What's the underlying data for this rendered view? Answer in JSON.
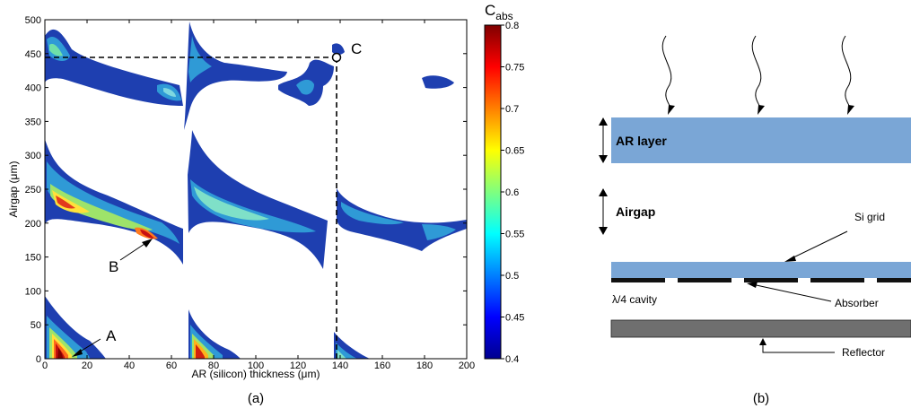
{
  "chart_data": {
    "type": "heatmap",
    "title": "",
    "xlabel": "AR (silicon) thickness (μm)",
    "ylabel": "Airgap (μm)",
    "xlim": [
      0,
      200
    ],
    "ylim": [
      0,
      500
    ],
    "xticks": [
      0,
      20,
      40,
      60,
      80,
      100,
      120,
      140,
      160,
      180,
      200
    ],
    "yticks": [
      0,
      50,
      100,
      150,
      200,
      250,
      300,
      350,
      400,
      450,
      500
    ],
    "colorbar": {
      "label": "C",
      "label_sub": "abs",
      "range": [
        0.4,
        0.8
      ],
      "ticks": [
        "0.8",
        "0.75",
        "0.7",
        "0.65",
        "0.6",
        "0.55",
        "0.5",
        "0.45",
        "0.4"
      ]
    },
    "points": [
      {
        "name": "A",
        "x": 12,
        "y": 10
      },
      {
        "name": "B",
        "x": 50,
        "y": 175
      },
      {
        "name": "C",
        "x": 137,
        "y": 450
      }
    ]
  },
  "captions": {
    "a": "(a)",
    "b": "(b)"
  },
  "diagram": {
    "ar_layer": "AR layer",
    "airgap": "Airgap",
    "si_grid": "Si grid",
    "cavity": "λ/4 cavity",
    "absorber": "Absorber",
    "reflector": "Reflector"
  },
  "colors": {
    "ar_layer": "#7aa6d6",
    "reflector": "#6f6f6f",
    "absorber": "#111111"
  }
}
